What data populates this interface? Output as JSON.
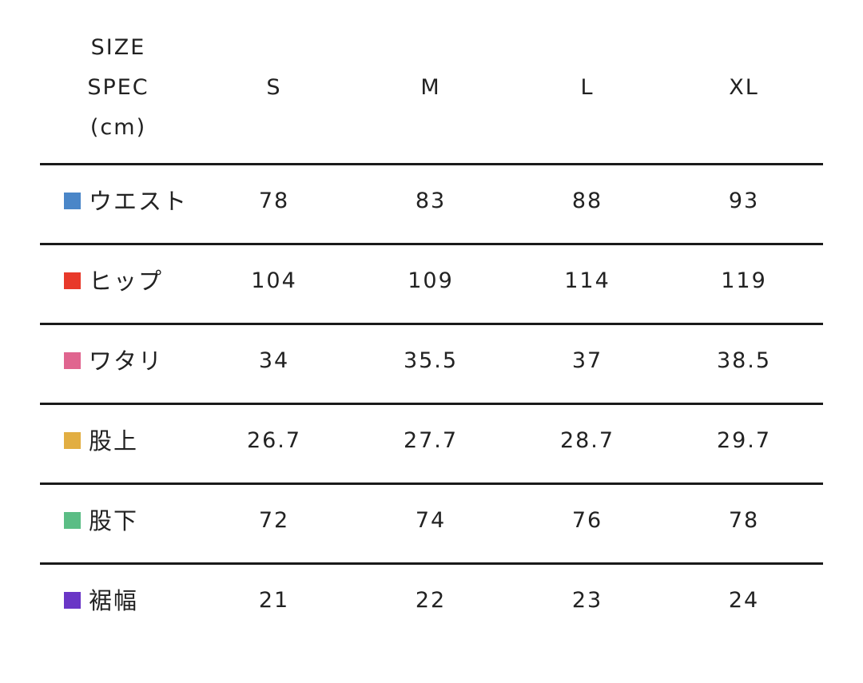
{
  "header": {
    "line1": "SIZE",
    "line2": "SPEC",
    "line3": "(cm)"
  },
  "columns": [
    "S",
    "M",
    "L",
    "XL"
  ],
  "rows": [
    {
      "label": "ウエスト",
      "color": "#4a86c8",
      "values": [
        "78",
        "83",
        "88",
        "93"
      ]
    },
    {
      "label": "ヒップ",
      "color": "#e8392a",
      "values": [
        "104",
        "109",
        "114",
        "119"
      ]
    },
    {
      "label": "ワタリ",
      "color": "#e0658f",
      "values": [
        "34",
        "35.5",
        "37",
        "38.5"
      ]
    },
    {
      "label": "股上",
      "color": "#e2ae42",
      "values": [
        "26.7",
        "27.7",
        "28.7",
        "29.7"
      ]
    },
    {
      "label": "股下",
      "color": "#5bbd85",
      "values": [
        "72",
        "74",
        "76",
        "78"
      ]
    },
    {
      "label": "裾幅",
      "color": "#6a36c6",
      "values": [
        "21",
        "22",
        "23",
        "24"
      ]
    }
  ]
}
